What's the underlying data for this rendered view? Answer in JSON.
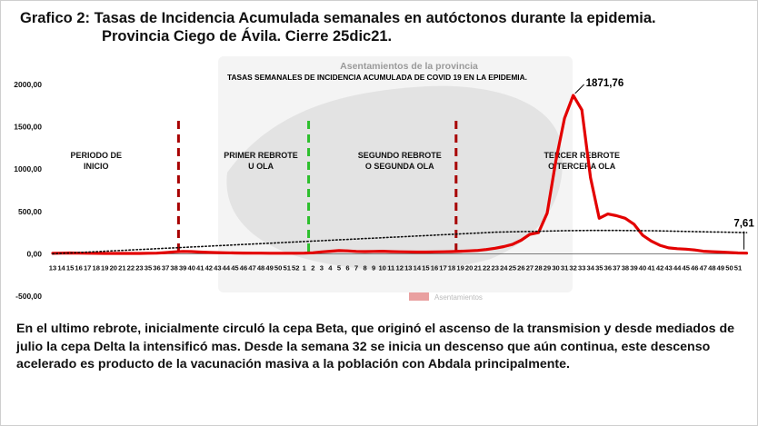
{
  "title": {
    "line1": "Grafico 2: Tasas de Incidencia Acumulada semanales en autóctonos durante la epidemia.",
    "line2": "Provincia Ciego de Ávila. Cierre 25dic21."
  },
  "note": "En el ultimo rebrote, inicialmente circuló la cepa Beta, que originó el ascenso de la transmision y desde mediados de julio la cepa Delta la intensificó mas. Desde la semana 32 se inicia un descenso  que aún continua, este descenso acelerado es producto de la vacunación masiva a la población con Abdala principalmente.",
  "chart_data": {
    "type": "line",
    "title": "TASAS SEMANALES DE INCIDENCIA ACUMULADA DE COVID 19 EN LA EPIDEMIA.",
    "background_text": "Asentamientos de la provincia",
    "background_legend": "Asentamientos",
    "ylim": [
      -500,
      2000
    ],
    "yticks": [
      "2000,00",
      "1500,00",
      "1000,00",
      "500,00",
      "0,00",
      "-500,00"
    ],
    "ytick_values": [
      2000,
      1500,
      1000,
      500,
      0,
      -500
    ],
    "x_ticks": [
      "13",
      "14",
      "15",
      "16",
      "17",
      "18",
      "19",
      "20",
      "21",
      "22",
      "23",
      "35",
      "36",
      "37",
      "38",
      "39",
      "40",
      "41",
      "42",
      "43",
      "44",
      "45",
      "46",
      "47",
      "48",
      "49",
      "50",
      "51",
      "52",
      "1",
      "2",
      "3",
      "4",
      "5",
      "6",
      "7",
      "8",
      "9",
      "10",
      "11",
      "12",
      "13",
      "14",
      "15",
      "16",
      "17",
      "18",
      "19",
      "20",
      "21",
      "22",
      "23",
      "24",
      "25",
      "26",
      "27",
      "28",
      "29",
      "30",
      "31",
      "32",
      "33",
      "34",
      "35",
      "36",
      "37",
      "38",
      "39",
      "40",
      "41",
      "42",
      "43",
      "44",
      "45",
      "46",
      "47",
      "48",
      "49",
      "50",
      "51"
    ],
    "series": [
      {
        "color": "#e30000",
        "values": [
          5,
          8,
          10,
          8,
          6,
          5,
          4,
          4,
          4,
          4,
          4,
          6,
          8,
          14,
          22,
          28,
          26,
          20,
          16,
          14,
          12,
          10,
          9,
          8,
          7,
          6,
          6,
          6,
          6,
          8,
          12,
          22,
          30,
          38,
          34,
          28,
          26,
          28,
          30,
          26,
          24,
          22,
          20,
          20,
          22,
          24,
          26,
          30,
          34,
          40,
          50,
          65,
          85,
          110,
          160,
          230,
          250,
          480,
          1100,
          1600,
          1871.76,
          1700,
          900,
          420,
          470,
          450,
          420,
          350,
          220,
          150,
          100,
          70,
          60,
          55,
          45,
          30,
          25,
          20,
          15,
          10,
          7.61
        ]
      },
      {
        "style": "dotted",
        "color": "#111111",
        "values": [
          0,
          5,
          10,
          15,
          20,
          25,
          30,
          35,
          40,
          45,
          50,
          55,
          60,
          65,
          70,
          75,
          80,
          85,
          90,
          95,
          100,
          105,
          110,
          115,
          120,
          125,
          130,
          135,
          140,
          145,
          150,
          155,
          160,
          165,
          170,
          175,
          180,
          185,
          190,
          195,
          200,
          205,
          210,
          215,
          220,
          225,
          230,
          235,
          240,
          245,
          250,
          255,
          258,
          260,
          262,
          264,
          266,
          268,
          270,
          272,
          274,
          275,
          276,
          276,
          276,
          276,
          275,
          274,
          273,
          272,
          270,
          268,
          266,
          264,
          262,
          260,
          258,
          256,
          254,
          252,
          250
        ]
      }
    ],
    "annotations": [
      {
        "text": "1871,76",
        "series_index": 0,
        "point_index": 60
      },
      {
        "text": "7,61",
        "series_index": 0,
        "point_index": 80
      }
    ],
    "periods": [
      {
        "lines": [
          "PERIODO DE",
          "INICIO"
        ],
        "center_index": 5
      },
      {
        "lines": [
          "PRIMER REBROTE",
          "U OLA"
        ],
        "center_index": 24
      },
      {
        "lines": [
          "SEGUNDO REBROTE",
          "O  SEGUNDA OLA"
        ],
        "center_index": 40
      },
      {
        "lines": [
          "TERCER REBROTE",
          "O TERCERA OLA"
        ],
        "center_index": 61
      }
    ],
    "dividers": [
      {
        "after_index": 14,
        "color": "#a80000"
      },
      {
        "after_index": 29,
        "color": "#2cbf2c"
      },
      {
        "after_index": 46,
        "color": "#a80000"
      }
    ],
    "grid": false,
    "legend": "none"
  }
}
